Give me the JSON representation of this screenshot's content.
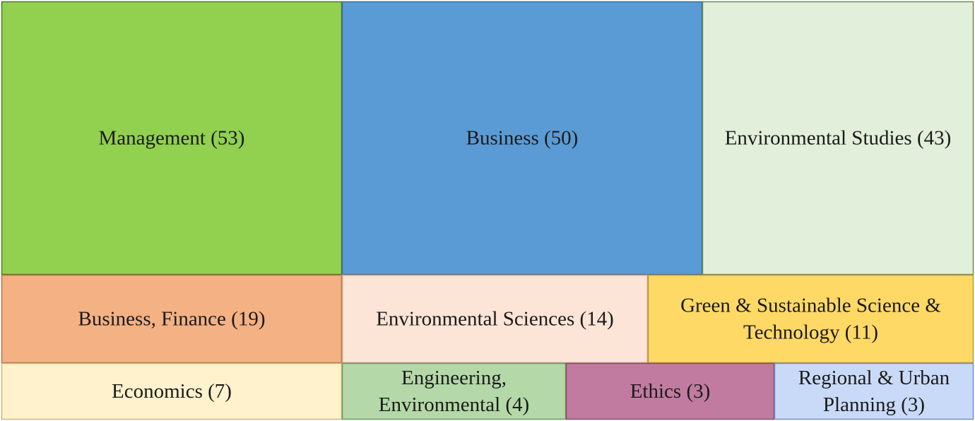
{
  "chart_data": {
    "type": "treemap",
    "title": "",
    "items": [
      {
        "name": "Management",
        "value": 53,
        "label_lines": [
          "Management (53)"
        ],
        "color": "#92d050",
        "border": "#4f7a2a"
      },
      {
        "name": "Business",
        "value": 50,
        "label_lines": [
          "Business (50)"
        ],
        "color": "#5b9bd5",
        "border": "#3a6f9c"
      },
      {
        "name": "Environmental Studies",
        "value": 43,
        "label_lines": [
          "Environmental Studies (43)"
        ],
        "color": "#e2efda",
        "border": "#6b8a55"
      },
      {
        "name": "Business, Finance",
        "value": 19,
        "label_lines": [
          "Business, Finance (19)"
        ],
        "color": "#f4b183",
        "border": "#b0734a"
      },
      {
        "name": "Environmental Sciences",
        "value": 14,
        "label_lines": [
          "Environmental Sciences (14)"
        ],
        "color": "#fce4d6",
        "border": "#c79b7d"
      },
      {
        "name": "Green & Sustainable Science & Technology",
        "value": 11,
        "label_lines": [
          "Green & Sustainable Science &",
          "Technology (11)"
        ],
        "color": "#ffd966",
        "border": "#b89a3a"
      },
      {
        "name": "Economics",
        "value": 7,
        "label_lines": [
          "Economics (7)"
        ],
        "color": "#fff2cc",
        "border": "#c9b77a"
      },
      {
        "name": "Engineering, Environmental",
        "value": 4,
        "label_lines": [
          "Engineering,",
          "Environmental (4)"
        ],
        "color": "#b4d8a8",
        "border": "#6f9a62"
      },
      {
        "name": "Ethics",
        "value": 3,
        "label_lines": [
          "Ethics (3)"
        ],
        "color": "#c27ba0",
        "border": "#8a4a6c"
      },
      {
        "name": "Regional & Urban Planning",
        "value": 3,
        "label_lines": [
          "Regional & Urban",
          "Planning (3)"
        ],
        "color": "#c9daf8",
        "border": "#6d8fd0"
      }
    ]
  }
}
